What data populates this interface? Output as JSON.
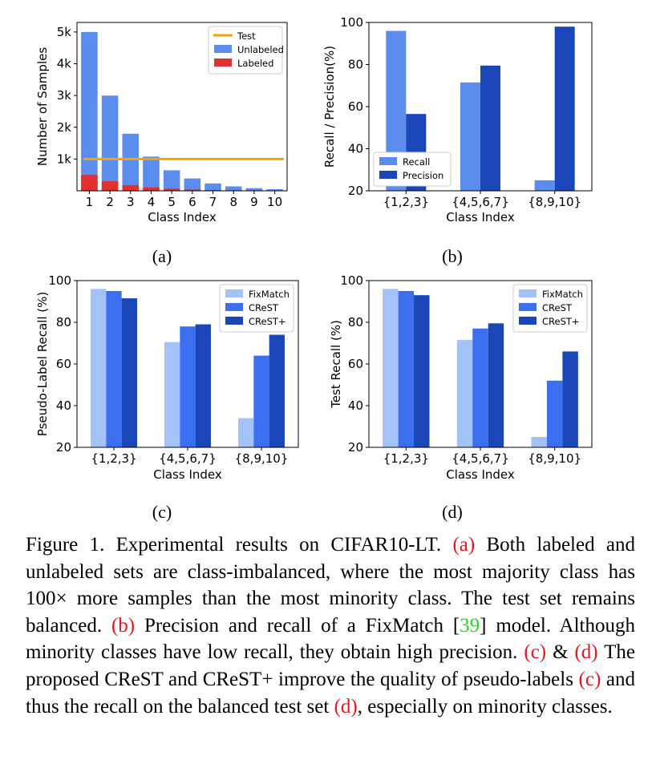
{
  "chart_data": [
    {
      "id": "a",
      "type": "bar",
      "xlabel": "Class Index",
      "ylabel": "Number of Samples",
      "categories": [
        "1",
        "2",
        "3",
        "4",
        "5",
        "6",
        "7",
        "8",
        "9",
        "10"
      ],
      "ylim": [
        0,
        5300
      ],
      "yticks": [
        1000,
        2000,
        3000,
        4000,
        5000
      ],
      "yticklabels": [
        "1k",
        "2k",
        "3k",
        "4k",
        "5k"
      ],
      "stacked": false,
      "series": [
        {
          "name": "Unlabeled",
          "color": "#5b8def",
          "values": [
            5000,
            2997,
            1796,
            1077,
            645,
            387,
            232,
            139,
            83,
            50
          ]
        },
        {
          "name": "Labeled",
          "color": "#e3302f",
          "values": [
            500,
            300,
            180,
            108,
            65,
            39,
            23,
            14,
            8,
            5
          ]
        }
      ],
      "hlines": [
        {
          "name": "Test",
          "color": "#f5a300",
          "y": 1000
        }
      ],
      "legend": {
        "position": "top-right",
        "items": [
          {
            "label": "Test",
            "kind": "line",
            "color": "#f5a300"
          },
          {
            "label": "Unlabeled",
            "kind": "box",
            "color": "#5b8def"
          },
          {
            "label": "Labeled",
            "kind": "box",
            "color": "#e3302f"
          }
        ]
      },
      "grid": false
    },
    {
      "id": "b",
      "type": "bar",
      "xlabel": "",
      "ylabel": "Recall / Precision(%)",
      "categories": [
        "{1,2,3}",
        "{4,5,6,7}",
        "{8,9,10}"
      ],
      "ylim": [
        20,
        100
      ],
      "yticks": [
        20,
        40,
        60,
        80,
        100
      ],
      "yticklabels": [
        "20",
        "40",
        "60",
        "80",
        "100"
      ],
      "series": [
        {
          "name": "Recall",
          "color": "#5b8def",
          "values": [
            96,
            71.5,
            25
          ]
        },
        {
          "name": "Precision",
          "color": "#1a46b8",
          "values": [
            56.5,
            79.5,
            98
          ]
        }
      ],
      "legend": {
        "position": "bottom-left",
        "items": [
          {
            "label": "Recall",
            "kind": "box",
            "color": "#5b8def"
          },
          {
            "label": "Precision",
            "kind": "box",
            "color": "#1a46b8"
          }
        ]
      },
      "shared_xlabel": "Class Index",
      "grid": false
    },
    {
      "id": "c",
      "type": "bar",
      "xlabel": "Class Index",
      "ylabel": "Pseudo-Label Recall (%)",
      "categories": [
        "{1,2,3}",
        "{4,5,6,7}",
        "{8,9,10}"
      ],
      "ylim": [
        20,
        100
      ],
      "yticks": [
        20,
        40,
        60,
        80,
        100
      ],
      "yticklabels": [
        "20",
        "40",
        "60",
        "80",
        "100"
      ],
      "series": [
        {
          "name": "FixMatch",
          "color": "#a3c2f7",
          "values": [
            96,
            70.5,
            34
          ]
        },
        {
          "name": "CReST",
          "color": "#3b6ff0",
          "values": [
            95,
            78,
            64
          ]
        },
        {
          "name": "CReST+",
          "color": "#1a46b8",
          "values": [
            91.5,
            79,
            74
          ]
        }
      ],
      "legend": {
        "position": "top-right",
        "items": [
          {
            "label": "FixMatch",
            "kind": "box",
            "color": "#a3c2f7"
          },
          {
            "label": "CReST",
            "kind": "box",
            "color": "#3b6ff0"
          },
          {
            "label": "CReST+",
            "kind": "box",
            "color": "#1a46b8"
          }
        ]
      },
      "grid": false
    },
    {
      "id": "d",
      "type": "bar",
      "xlabel": "Class Index",
      "ylabel": "Test Recall (%)",
      "categories": [
        "{1,2,3}",
        "{4,5,6,7}",
        "{8,9,10}"
      ],
      "ylim": [
        20,
        100
      ],
      "yticks": [
        20,
        40,
        60,
        80,
        100
      ],
      "yticklabels": [
        "20",
        "40",
        "60",
        "80",
        "100"
      ],
      "series": [
        {
          "name": "FixMatch",
          "color": "#a3c2f7",
          "values": [
            96,
            71.5,
            25
          ]
        },
        {
          "name": "CReST",
          "color": "#3b6ff0",
          "values": [
            95,
            77,
            52
          ]
        },
        {
          "name": "CReST+",
          "color": "#1a46b8",
          "values": [
            93,
            79.5,
            66
          ]
        }
      ],
      "legend": {
        "position": "top-right",
        "items": [
          {
            "label": "FixMatch",
            "kind": "box",
            "color": "#a3c2f7"
          },
          {
            "label": "CReST",
            "kind": "box",
            "color": "#3b6ff0"
          },
          {
            "label": "CReST+",
            "kind": "box",
            "color": "#1a46b8"
          }
        ]
      },
      "grid": false
    }
  ],
  "subcaptions": {
    "a": "(a)",
    "b": "(b)",
    "c": "(c)",
    "d": "(d)"
  },
  "caption": {
    "p1": "Figure 1. Experimental results on CIFAR10-LT. ",
    "ref_a": "(a)",
    "p2": " Both labeled and unlabeled sets are class-imbalanced, where the most majority class has 100× more samples than the most minority class. The test set remains balanced. ",
    "ref_b": "(b)",
    "p3": " Precision and recall of a FixMatch [",
    "cite": "39",
    "p4": "] model. Although minority classes have low recall, they obtain high precision. ",
    "ref_c": "(c)",
    "p5": " & ",
    "ref_d": "(d)",
    "p6": " The proposed CReST and CReST+ improve the quality of pseudo-labels ",
    "ref_c2": "(c)",
    "p7": " and thus the recall on the balanced test set ",
    "ref_d2": "(d)",
    "p8": ", especially on minority classes."
  },
  "colors": {
    "ref": "#e8151b",
    "cite": "#2bd32b"
  }
}
